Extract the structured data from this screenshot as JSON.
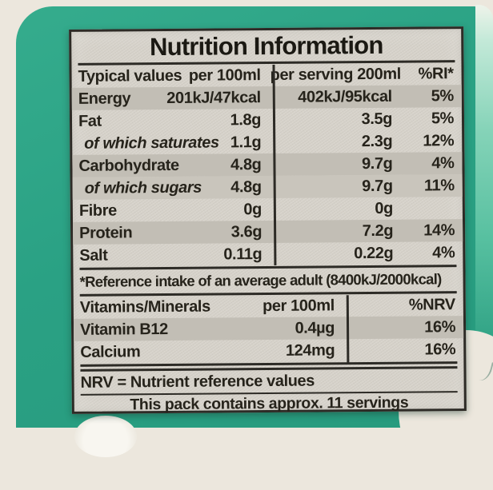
{
  "colors": {
    "carton_green": "#2aa184",
    "carton_cream": "#ece7dd",
    "paper": "#d7d3cb",
    "paper_stripe": "#c2beb5",
    "ink": "#26231b"
  },
  "label": {
    "title": "Nutrition Information",
    "main_table": {
      "headers": [
        "Typical values",
        "per 100ml",
        "per serving 200ml",
        "%RI*"
      ],
      "rows": [
        {
          "name": "Energy",
          "per_100ml": "201kJ/47kcal",
          "per_serving": "402kJ/95kcal",
          "ri": "5%",
          "shaded": true,
          "italic": false
        },
        {
          "name": "Fat",
          "per_100ml": "1.8g",
          "per_serving": "3.5g",
          "ri": "5%",
          "shaded": false,
          "italic": false
        },
        {
          "name": "of which saturates",
          "per_100ml": "1.1g",
          "per_serving": "2.3g",
          "ri": "12%",
          "shaded": false,
          "italic": true
        },
        {
          "name": "Carbohydrate",
          "per_100ml": "4.8g",
          "per_serving": "9.7g",
          "ri": "4%",
          "shaded": true,
          "italic": false
        },
        {
          "name": "of which sugars",
          "per_100ml": "4.8g",
          "per_serving": "9.7g",
          "ri": "11%",
          "shaded": true,
          "italic": true
        },
        {
          "name": "Fibre",
          "per_100ml": "0g",
          "per_serving": "0g",
          "ri": "",
          "shaded": false,
          "italic": false
        },
        {
          "name": "Protein",
          "per_100ml": "3.6g",
          "per_serving": "7.2g",
          "ri": "14%",
          "shaded": true,
          "italic": false
        },
        {
          "name": "Salt",
          "per_100ml": "0.11g",
          "per_serving": "0.22g",
          "ri": "4%",
          "shaded": false,
          "italic": false
        }
      ]
    },
    "reference_note": "*Reference intake of an average adult (8400kJ/2000kcal)",
    "vitamins_table": {
      "headers": [
        "Vitamins/Minerals",
        "per 100ml",
        "%NRV"
      ],
      "rows": [
        {
          "name": "Vitamin B12",
          "per_100ml": "0.4µg",
          "nrv": "16%",
          "shaded": true
        },
        {
          "name": "Calcium",
          "per_100ml": "124mg",
          "nrv": "16%",
          "shaded": false
        }
      ]
    },
    "nrv_note": "NRV = Nutrient reference values",
    "servings_note": "This pack contains approx. 11 servings"
  }
}
